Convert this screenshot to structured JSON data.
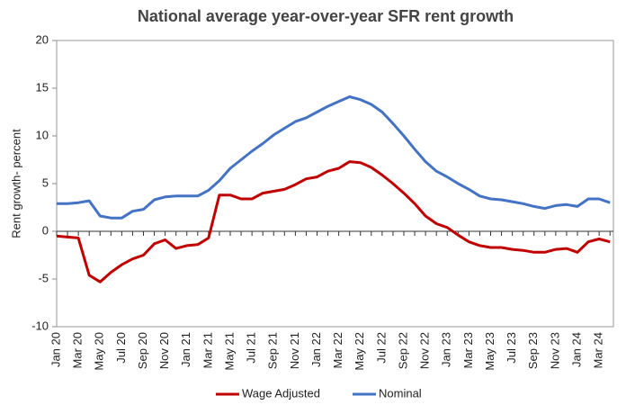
{
  "chart_data": {
    "type": "line",
    "title": "National average year-over-year SFR rent growth",
    "y_label": "Rent growth- percent",
    "categories": [
      "Jan 20",
      null,
      "Mar 20",
      null,
      "May 20",
      null,
      "Jul 20",
      null,
      "Sep 20",
      null,
      "Nov 20",
      null,
      "Jan 21",
      null,
      "Mar 21",
      null,
      "May 21",
      null,
      "Jul 21",
      null,
      "Sep 21",
      null,
      "Nov 21",
      null,
      "Jan 22",
      null,
      "Mar 22",
      null,
      "May 22",
      null,
      "Jul 22",
      null,
      "Sep 22",
      null,
      "Nov 22",
      null,
      "Jan 23",
      null,
      "Mar 23",
      null,
      "May 23",
      null,
      "Jul 23",
      null,
      "Sep 23",
      null,
      "Nov 23",
      null,
      "Jan 24",
      null,
      "Mar 24",
      null
    ],
    "series": [
      {
        "name": "Wage Adjusted",
        "color": "#c00000",
        "values": [
          -0.5,
          -0.6,
          -0.7,
          -4.6,
          -5.3,
          -4.3,
          -3.5,
          -2.9,
          -2.5,
          -1.3,
          -0.9,
          -1.8,
          -1.5,
          -1.4,
          -0.7,
          3.8,
          3.8,
          3.4,
          3.4,
          4.0,
          4.2,
          4.4,
          4.9,
          5.5,
          5.7,
          6.3,
          6.6,
          7.3,
          7.2,
          6.7,
          5.9,
          5.0,
          4.0,
          2.9,
          1.6,
          0.8,
          0.4,
          -0.4,
          -1.1,
          -1.5,
          -1.7,
          -1.7,
          -1.9,
          -2.0,
          -2.2,
          -2.2,
          -1.9,
          -1.8,
          -2.2,
          -1.1,
          -0.8,
          -1.1
        ]
      },
      {
        "name": "Nominal",
        "color": "#4472c4",
        "values": [
          2.9,
          2.9,
          3.0,
          3.2,
          1.6,
          1.4,
          1.4,
          2.1,
          2.3,
          3.3,
          3.6,
          3.7,
          3.7,
          3.7,
          4.3,
          5.3,
          6.6,
          7.5,
          8.4,
          9.2,
          10.1,
          10.8,
          11.5,
          11.9,
          12.5,
          13.1,
          13.6,
          14.1,
          13.8,
          13.3,
          12.5,
          11.3,
          10.0,
          8.6,
          7.3,
          6.3,
          5.7,
          5.0,
          4.4,
          3.7,
          3.4,
          3.3,
          3.1,
          2.9,
          2.6,
          2.4,
          2.7,
          2.8,
          2.6,
          3.4,
          3.4,
          3.0
        ]
      }
    ],
    "ylim": [
      -10,
      20
    ],
    "yticks": [
      -10,
      -5,
      0,
      5,
      10,
      15,
      20
    ],
    "legend": "bottom"
  }
}
